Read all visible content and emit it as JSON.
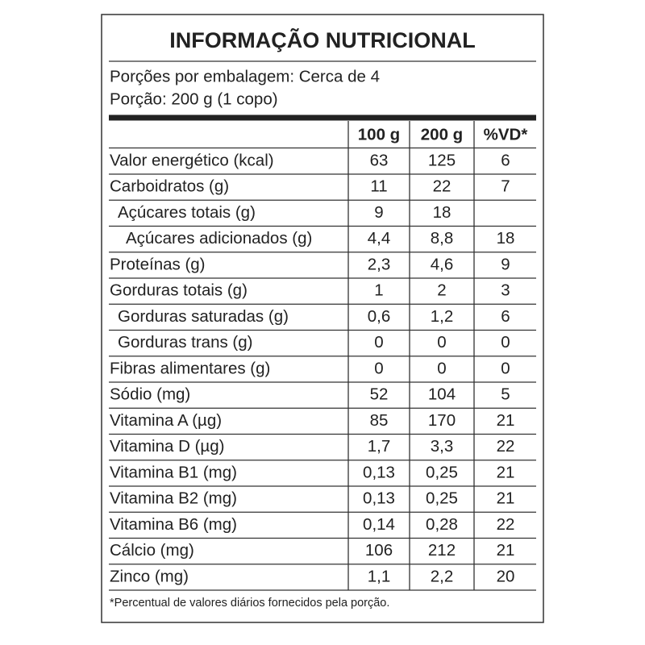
{
  "title": "INFORMAÇÃO NUTRICIONAL",
  "servings_per_package": "Porções por embalagem: Cerca de 4",
  "serving_size": "Porção: 200 g (1 copo)",
  "table": {
    "header": [
      "100 g",
      "200 g",
      "%VD*"
    ],
    "rows": [
      {
        "label": "Valor energético (kcal)",
        "values": [
          "63",
          "125",
          "6"
        ]
      },
      {
        "label": "Carboidratos (g)",
        "values": [
          "11",
          "22",
          "7"
        ],
        "sub": [
          {
            "label": "Açúcares totais (g)",
            "values": [
              "9",
              "18"
            ],
            "sub": [
              {
                "label": "Açúcares adicionados (g)",
                "values": [
                  "4,4",
                  "8,8",
                  "18"
                ]
              }
            ]
          }
        ]
      },
      {
        "label": "Proteínas (g)",
        "values": [
          "2,3",
          "4,6",
          "9"
        ]
      },
      {
        "label": "Gorduras totais (g)",
        "values": [
          "1",
          "2",
          "3"
        ],
        "sub": [
          {
            "label": "Gorduras saturadas (g)",
            "values": [
              "0,6",
              "1,2",
              "6"
            ]
          },
          {
            "label": "Gorduras trans (g)",
            "values": [
              "0",
              "0",
              "0"
            ]
          }
        ]
      },
      {
        "label": "Fibras alimentares (g)",
        "values": [
          "0",
          "0",
          "0"
        ]
      },
      {
        "label": "Sódio (mg)",
        "values": [
          "52",
          "104",
          "5"
        ]
      },
      {
        "label": "Vitamina A (µg)",
        "values": [
          "85",
          "170",
          "21"
        ]
      },
      {
        "label": "Vitamina D (µg)",
        "values": [
          "1,7",
          "3,3",
          "22"
        ]
      },
      {
        "label": "Vitamina B1 (mg)",
        "values": [
          "0,13",
          "0,25",
          "21"
        ]
      },
      {
        "label": "Vitamina B2 (mg)",
        "values": [
          "0,13",
          "0,25",
          "21"
        ]
      },
      {
        "label": "Vitamina B6 (mg)",
        "values": [
          "0,14",
          "0,28",
          "22"
        ]
      },
      {
        "label": "Cálcio (mg)",
        "values": [
          "106",
          "212",
          "21"
        ]
      },
      {
        "label": "Zinco (mg)",
        "values": [
          "1,1",
          "2,2",
          "20"
        ]
      }
    ]
  },
  "footnote": "*Percentual de valores diários fornecidos pela porção."
}
